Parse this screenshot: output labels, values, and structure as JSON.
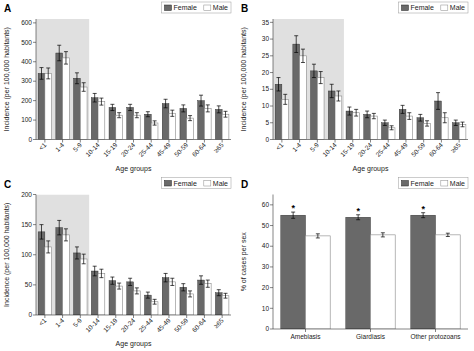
{
  "chart_data": [
    {
      "type": "bar",
      "title": "A",
      "ylabel": "Incidence (per 100,000 habitants)",
      "xlabel": "Age groups",
      "categories": [
        "<1",
        "1-4",
        "5-9",
        "10-14",
        "15-19",
        "20-24",
        "25-44",
        "45-49",
        "50-59",
        "60-64",
        "≥65"
      ],
      "series": [
        {
          "name": "Female",
          "color": "#696969",
          "values": [
            340,
            445,
            315,
            215,
            165,
            165,
            130,
            185,
            160,
            200,
            155
          ],
          "errors": [
            30,
            40,
            28,
            22,
            16,
            16,
            13,
            22,
            18,
            28,
            18
          ]
        },
        {
          "name": "Male",
          "color": "#ffffff",
          "values": [
            340,
            420,
            270,
            195,
            125,
            125,
            85,
            135,
            110,
            160,
            130
          ],
          "errors": [
            28,
            32,
            22,
            18,
            13,
            13,
            11,
            16,
            13,
            18,
            15
          ]
        }
      ],
      "shaded_groups": 3,
      "shade_color": "#e0e0e0",
      "ylim": [
        0,
        620
      ],
      "yticks": [
        0,
        100,
        200,
        300,
        400,
        500,
        600
      ],
      "legend": "upper right"
    },
    {
      "type": "bar",
      "title": "B",
      "ylabel": "Incidence (per 100,000 habitants)",
      "xlabel": "Age groups",
      "categories": [
        "<1",
        "1-4",
        "5-9",
        "10-14",
        "15-19",
        "20-24",
        "25-44",
        "45-49",
        "50-59",
        "60-64",
        "≥65"
      ],
      "series": [
        {
          "name": "Female",
          "color": "#696969",
          "values": [
            16.5,
            28.5,
            20.5,
            14.5,
            8.5,
            7.5,
            5.0,
            9.0,
            6.5,
            11.5,
            5.0
          ],
          "errors": [
            2.0,
            2.5,
            2.0,
            2.0,
            1.2,
            1.0,
            0.8,
            1.2,
            1.0,
            2.5,
            0.8
          ]
        },
        {
          "name": "Male",
          "color": "#ffffff",
          "values": [
            12.0,
            25.0,
            18.5,
            13.0,
            8.0,
            7.0,
            3.5,
            7.0,
            4.8,
            6.5,
            4.5
          ],
          "errors": [
            1.5,
            2.0,
            1.8,
            1.5,
            1.0,
            0.8,
            0.6,
            1.0,
            0.8,
            1.5,
            0.7
          ]
        }
      ],
      "shaded_groups": 4,
      "shade_color": "#e0e0e0",
      "ylim": [
        0,
        36
      ],
      "yticks": [
        0,
        5,
        10,
        15,
        20,
        25,
        30,
        35
      ],
      "legend": "upper right"
    },
    {
      "type": "bar",
      "title": "C",
      "ylabel": "Incidence (per 100,000 habitants)",
      "xlabel": "Age groups",
      "categories": [
        "<1",
        "1-4",
        "5-9",
        "10-14",
        "15-19",
        "20-24",
        "25-44",
        "45-49",
        "50-59",
        "60-64",
        "≥65"
      ],
      "series": [
        {
          "name": "Female",
          "color": "#696969",
          "values": [
            138,
            145,
            103,
            73,
            57,
            55,
            33,
            62,
            46,
            58,
            37
          ],
          "errors": [
            12,
            12,
            10,
            8,
            6,
            6,
            5,
            7,
            6,
            7,
            5
          ]
        },
        {
          "name": "Male",
          "color": "#ffffff",
          "values": [
            113,
            133,
            93,
            69,
            48,
            40,
            22,
            55,
            35,
            52,
            32
          ],
          "errors": [
            10,
            10,
            8,
            7,
            5,
            5,
            4,
            6,
            5,
            6,
            4
          ]
        }
      ],
      "shaded_groups": 3,
      "shade_color": "#e0e0e0",
      "ylim": [
        0,
        200
      ],
      "yticks": [
        0,
        50,
        100,
        150,
        200
      ],
      "legend": "upper right"
    },
    {
      "type": "bar",
      "title": "D",
      "ylabel": "% of cases per sex",
      "categories": [
        "Amebiasis",
        "Giardiasis",
        "Other protozoans"
      ],
      "series": [
        {
          "name": "Female",
          "color": "#696969",
          "values": [
            55,
            54,
            55
          ],
          "errors": [
            1.5,
            1.2,
            1.2
          ]
        },
        {
          "name": "Male",
          "color": "#ffffff",
          "values": [
            45,
            45.5,
            45.5
          ],
          "errors": [
            1.0,
            1.0,
            0.8
          ]
        }
      ],
      "annotations": [
        {
          "text": "*",
          "series": 0,
          "index": 0
        },
        {
          "text": "*",
          "series": 0,
          "index": 1
        },
        {
          "text": "*",
          "series": 0,
          "index": 2
        }
      ],
      "ylim": [
        0,
        65
      ],
      "yticks": [
        0,
        10,
        20,
        30,
        40,
        50,
        60
      ],
      "legend": "upper right"
    }
  ]
}
